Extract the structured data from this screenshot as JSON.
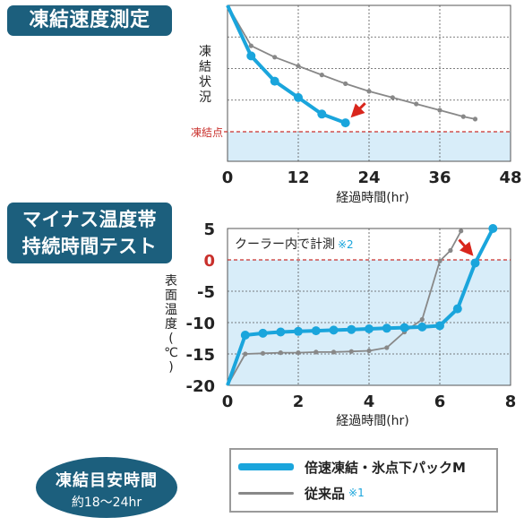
{
  "chart_data": [
    {
      "type": "line",
      "title": "凍結速度測定",
      "xlabel": "経過時間(hr)",
      "ylabel": "凍結状況",
      "xlim": [
        0,
        48
      ],
      "xticks": [
        0,
        12,
        24,
        36,
        48
      ],
      "reference_label": "凍結点",
      "series": [
        {
          "name": "倍速凍結・氷点下パックM",
          "color": "#1aa5dc",
          "points": [
            [
              0,
              0
            ],
            [
              4,
              0.4
            ],
            [
              8,
              0.6
            ],
            [
              12,
              0.73
            ],
            [
              16,
              0.86
            ],
            [
              20,
              0.93
            ]
          ]
        },
        {
          "name": "従来品",
          "color": "#888888",
          "points": [
            [
              0,
              0
            ],
            [
              4,
              0.32
            ],
            [
              8,
              0.41
            ],
            [
              12,
              0.48
            ],
            [
              16,
              0.55
            ],
            [
              20,
              0.62
            ],
            [
              24,
              0.68
            ],
            [
              28,
              0.73
            ],
            [
              32,
              0.78
            ],
            [
              36,
              0.83
            ],
            [
              40,
              0.88
            ],
            [
              42,
              0.9
            ]
          ]
        }
      ]
    },
    {
      "type": "line",
      "title": "マイナス温度帯持続時間テスト",
      "title_lines": [
        "マイナス温度帯",
        "持続時間テスト"
      ],
      "xlabel": "経過時間(hr)",
      "ylabel": "表面温度(℃)",
      "xlim": [
        0,
        8
      ],
      "ylim": [
        -20,
        5
      ],
      "xticks": [
        0,
        2,
        4,
        6,
        8
      ],
      "yticks": [
        5,
        0,
        -5,
        -10,
        -15,
        -20
      ],
      "annotation": "クーラー内で計測",
      "annotation_note": "※2",
      "series": [
        {
          "name": "倍速凍結・氷点下パックM",
          "color": "#1aa5dc",
          "points": [
            [
              0,
              -20
            ],
            [
              0.5,
              -12
            ],
            [
              1,
              -11.7
            ],
            [
              1.5,
              -11.5
            ],
            [
              2,
              -11.4
            ],
            [
              2.5,
              -11.3
            ],
            [
              3,
              -11.2
            ],
            [
              3.5,
              -11.1
            ],
            [
              4,
              -11
            ],
            [
              4.5,
              -10.9
            ],
            [
              5,
              -10.8
            ],
            [
              5.5,
              -10.7
            ],
            [
              6,
              -10.5
            ],
            [
              6.5,
              -7.8
            ],
            [
              7,
              -0.5
            ],
            [
              7.5,
              5
            ]
          ]
        },
        {
          "name": "従来品",
          "color": "#888888",
          "points": [
            [
              0,
              -20
            ],
            [
              0.5,
              -15
            ],
            [
              1,
              -14.9
            ],
            [
              1.5,
              -14.8
            ],
            [
              2,
              -14.8
            ],
            [
              2.5,
              -14.7
            ],
            [
              3,
              -14.7
            ],
            [
              3.5,
              -14.6
            ],
            [
              4,
              -14.5
            ],
            [
              4.5,
              -14
            ],
            [
              5,
              -11.5
            ],
            [
              5.5,
              -9.5
            ],
            [
              6,
              -0.2
            ],
            [
              6.3,
              1.5
            ],
            [
              6.6,
              4.6
            ]
          ]
        }
      ]
    }
  ],
  "goal": {
    "title": "凍結目安時間",
    "subtitle": "約18〜24hr"
  },
  "legend": [
    {
      "label": "倍速凍結・氷点下パックM",
      "note": "",
      "color": "#1aa5dc"
    },
    {
      "label": "従来品",
      "note": "※1",
      "color": "#888888"
    }
  ]
}
